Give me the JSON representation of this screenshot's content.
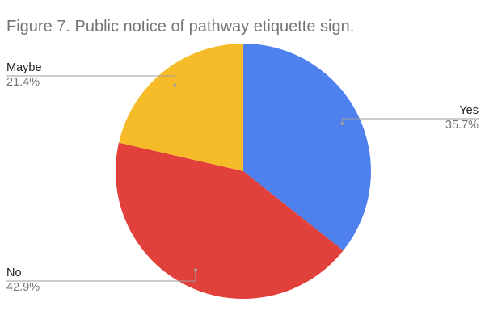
{
  "chart_data": {
    "type": "pie",
    "title": "Figure 7. Public notice of pathway etiquette sign.",
    "slices": [
      {
        "label": "Yes",
        "value": 35.7,
        "value_label": "35.7%",
        "color": "#4e81ee"
      },
      {
        "label": "No",
        "value": 42.9,
        "value_label": "42.9%",
        "color": "#e2403a"
      },
      {
        "label": "Maybe",
        "value": 21.4,
        "value_label": "21.4%",
        "color": "#f5bb28"
      }
    ],
    "start_angle": "12 o'clock",
    "direction": "clockwise",
    "legend": "none",
    "labels": "outside with leader lines"
  }
}
